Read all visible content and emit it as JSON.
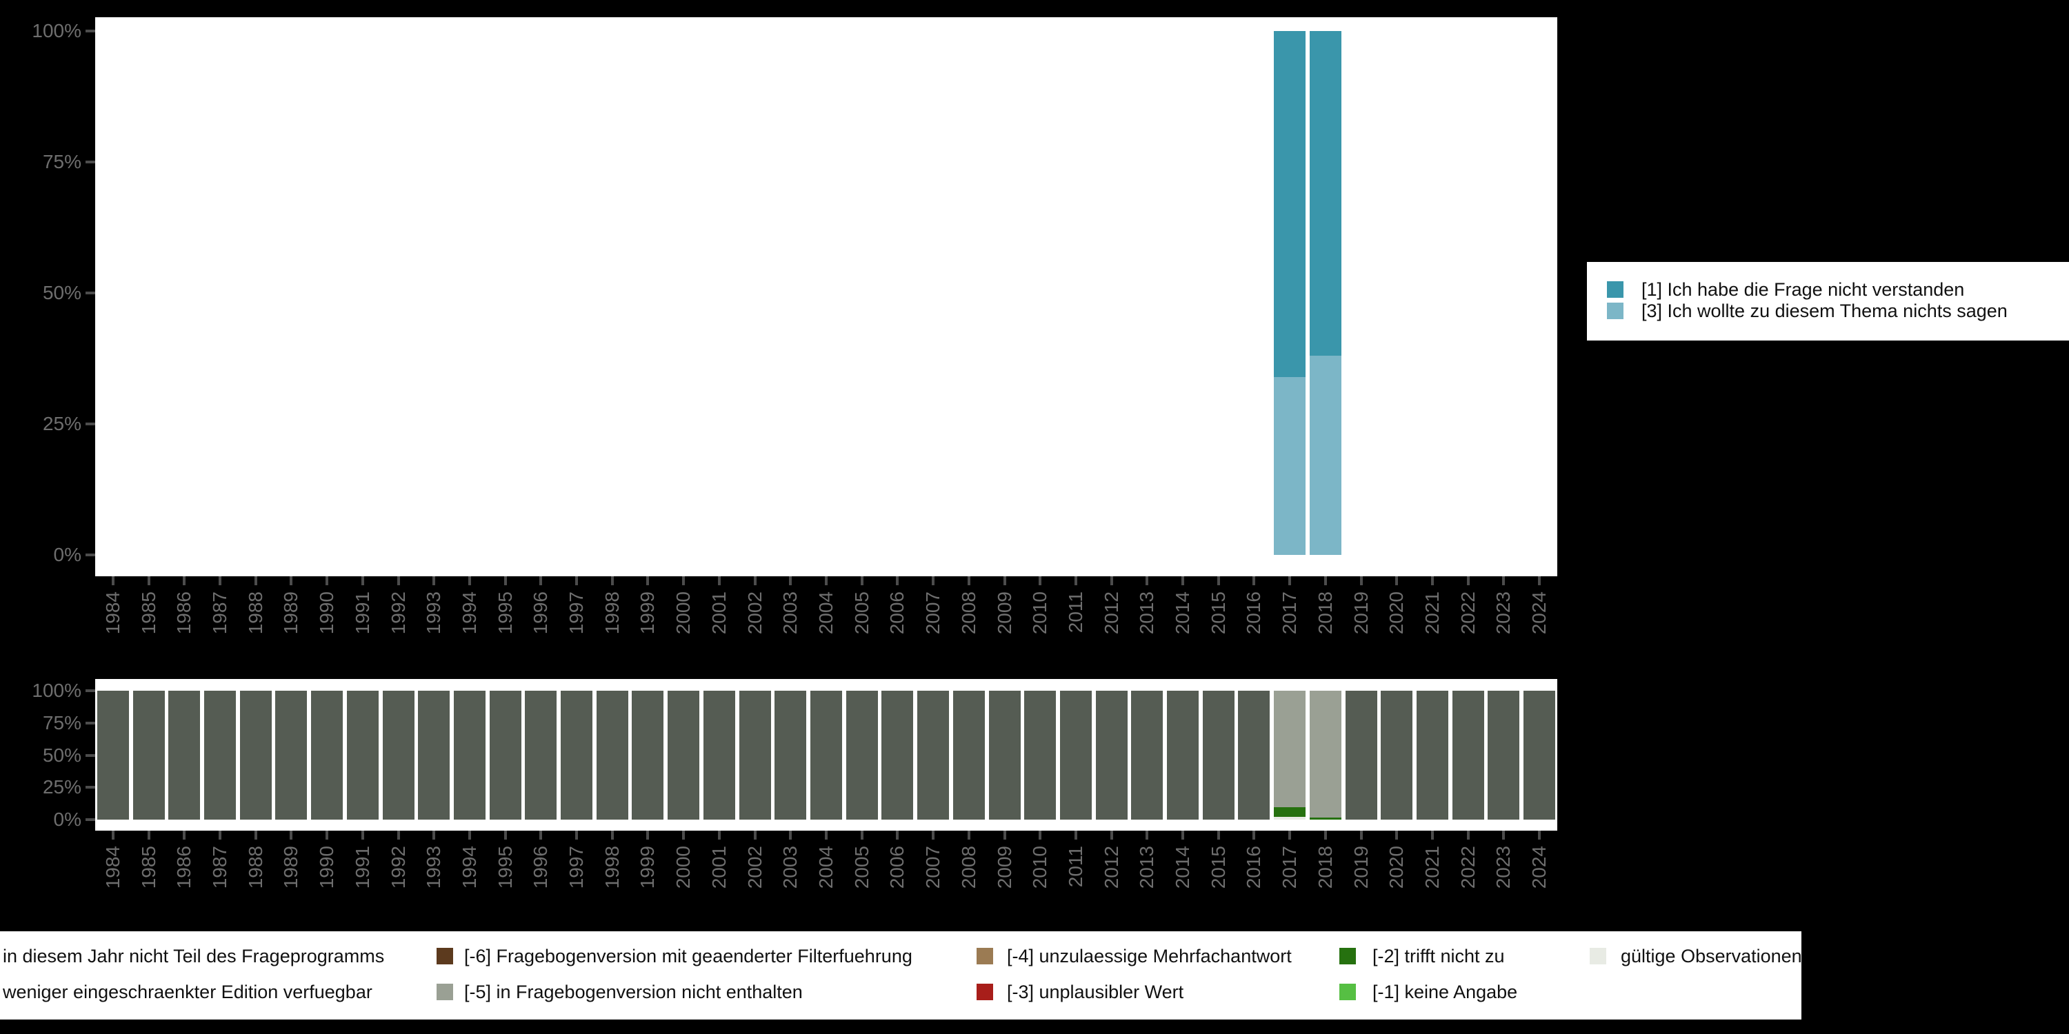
{
  "background_color": "#000000",
  "axis_style": {
    "tick_color": "#4c4c4c",
    "label_color": "#6e6e6e"
  },
  "chart_data": [
    {
      "id": "values",
      "type": "bar",
      "stacked": true,
      "unit": "percent",
      "title": "",
      "xlabel": "",
      "ylabel": "",
      "grid": false,
      "ylim": [
        0,
        100
      ],
      "y_ticks": [
        "0%",
        "25%",
        "50%",
        "75%",
        "100%"
      ],
      "legend_position": "right",
      "categories": [
        "1984",
        "1985",
        "1986",
        "1987",
        "1988",
        "1989",
        "1990",
        "1991",
        "1992",
        "1993",
        "1994",
        "1995",
        "1996",
        "1997",
        "1998",
        "1999",
        "2000",
        "2001",
        "2002",
        "2003",
        "2004",
        "2005",
        "2006",
        "2007",
        "2008",
        "2009",
        "2010",
        "2011",
        "2012",
        "2013",
        "2014",
        "2015",
        "2016",
        "2017",
        "2018",
        "2019",
        "2020",
        "2021",
        "2022",
        "2023",
        "2024"
      ],
      "series": [
        {
          "name": "[3] Ich wollte zu diesem Thema nichts sagen",
          "color": "#7cb6c7",
          "default": 0,
          "values_by_category": {
            "2017": 34,
            "2018": 38
          }
        },
        {
          "name": "[1] Ich habe die Frage nicht verstanden",
          "color": "#3a96ab",
          "default": 0,
          "values_by_category": {
            "2017": 66,
            "2018": 62
          }
        }
      ]
    },
    {
      "id": "missings",
      "type": "bar",
      "stacked": true,
      "unit": "percent",
      "title": "",
      "xlabel": "",
      "ylabel": "",
      "grid": false,
      "ylim": [
        0,
        100
      ],
      "y_ticks": [
        "0%",
        "25%",
        "50%",
        "75%",
        "100%"
      ],
      "legend_position": "bottom",
      "categories": [
        "1984",
        "1985",
        "1986",
        "1987",
        "1988",
        "1989",
        "1990",
        "1991",
        "1992",
        "1993",
        "1994",
        "1995",
        "1996",
        "1997",
        "1998",
        "1999",
        "2000",
        "2001",
        "2002",
        "2003",
        "2004",
        "2005",
        "2006",
        "2007",
        "2008",
        "2009",
        "2010",
        "2011",
        "2012",
        "2013",
        "2014",
        "2015",
        "2016",
        "2017",
        "2018",
        "2019",
        "2020",
        "2021",
        "2022",
        "2023",
        "2024"
      ],
      "series": [
        {
          "name": "gültige Observationen",
          "color": "#e8ebe4",
          "default": 0,
          "values_by_category": {
            "2017": 2
          }
        },
        {
          "name": "[-1] keine Angabe",
          "color": "#56bf43",
          "default": 0,
          "values_by_category": {}
        },
        {
          "name": "[-2] trifft nicht zu",
          "color": "#26710f",
          "default": 0,
          "values_by_category": {
            "2017": 7.5,
            "2018": 1.6
          }
        },
        {
          "name": "[-3] unplausibler Wert",
          "color": "#a81e1a",
          "default": 0,
          "values_by_category": {}
        },
        {
          "name": "[-4] unzulaessige Mehrfachantwort",
          "color": "#9b7b53",
          "default": 0,
          "values_by_category": {}
        },
        {
          "name": "[-5] in Fragebogenversion nicht enthalten",
          "color": "#9aa094",
          "default": 0,
          "values_by_category": {
            "2017": 90.5,
            "2018": 98.4
          }
        },
        {
          "name": "[-6] Fragebogenversion mit geaenderter Filterfuehrung",
          "color": "#5c3a1e",
          "default": 0,
          "values_by_category": {}
        },
        {
          "name": "in diesem Jahr nicht Teil des Frageprogramms",
          "color": "#555c53",
          "default": 100,
          "values_by_category": {
            "2017": 0,
            "2018": 0
          }
        },
        {
          "name": "weniger eingeschraenkter Edition verfuegbar",
          "color": null,
          "default": 0,
          "values_by_category": {}
        }
      ]
    }
  ],
  "top_legend": {
    "items": [
      {
        "label": "[1] Ich habe die Frage nicht verstanden",
        "color": "#3a96ab"
      },
      {
        "label": "[3] Ich wollte zu diesem Thema nichts sagen",
        "color": "#7cb6c7"
      }
    ]
  },
  "bottom_legend": {
    "rows": [
      [
        {
          "label": "in diesem Jahr nicht Teil des Frageprogramms",
          "color": null
        },
        {
          "label": "[-6] Fragebogenversion mit geaenderter Filterfuehrung",
          "color": "#5c3a1e"
        },
        {
          "label": "[-4] unzulaessige Mehrfachantwort",
          "color": "#9b7b53"
        },
        {
          "label": "[-2] trifft nicht zu",
          "color": "#26710f"
        },
        {
          "label": "gültige Observationen",
          "color": "#e8ebe4"
        }
      ],
      [
        {
          "label": "weniger eingeschraenkter Edition verfuegbar",
          "color": null
        },
        {
          "label": "[-5] in Fragebogenversion nicht enthalten",
          "color": "#9aa094"
        },
        {
          "label": "[-3] unplausibler Wert",
          "color": "#a81e1a"
        },
        {
          "label": "[-1] keine Angabe",
          "color": "#56bf43"
        }
      ]
    ]
  }
}
